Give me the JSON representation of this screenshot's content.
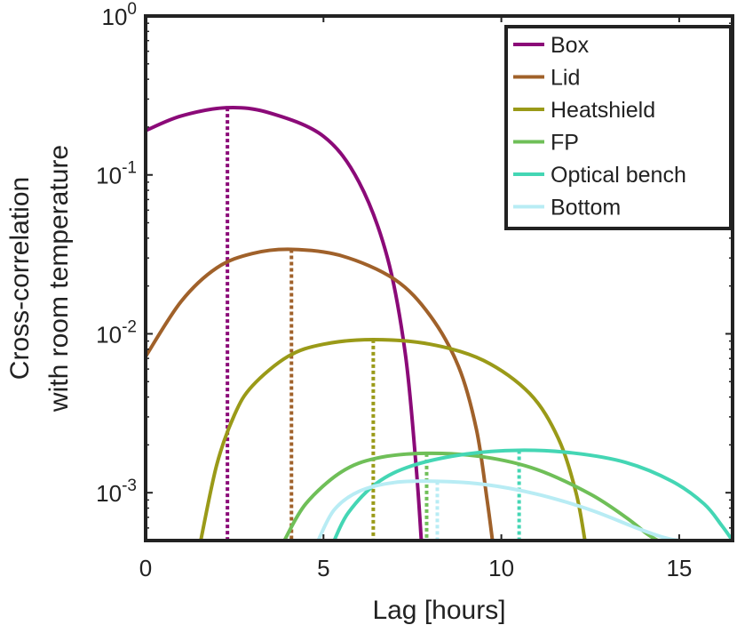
{
  "chart_data": {
    "type": "line",
    "title": "",
    "xlabel": "Lag [hours]",
    "ylabel": [
      "Cross-correlation",
      "with room temperature"
    ],
    "xlim": [
      0,
      16.5
    ],
    "ylim": [
      0.0005,
      1
    ],
    "yscale": "log",
    "grid": false,
    "legend_position": "top-right",
    "x_ticks": [
      {
        "value": 0,
        "label": "0"
      },
      {
        "value": 5,
        "label": "5"
      },
      {
        "value": 10,
        "label": "10"
      },
      {
        "value": 15,
        "label": "15"
      }
    ],
    "y_ticks": [
      {
        "value": 0.001,
        "base": "10",
        "exp": "-3"
      },
      {
        "value": 0.01,
        "base": "10",
        "exp": "-2"
      },
      {
        "value": 0.1,
        "base": "10",
        "exp": "-1"
      },
      {
        "value": 1,
        "base": "10",
        "exp": "0"
      }
    ],
    "series": [
      {
        "name": "Box",
        "color": "#8b0a78",
        "x": [
          0,
          1,
          2.3,
          3.5,
          5,
          6,
          6.8,
          7.3,
          7.6,
          7.75
        ],
        "y": [
          0.19,
          0.235,
          0.265,
          0.245,
          0.175,
          0.09,
          0.03,
          0.0075,
          0.0015,
          0.0005
        ],
        "peak": {
          "x": 2.3,
          "y": 0.265
        }
      },
      {
        "name": "Lid",
        "color": "#a0612a",
        "x": [
          0,
          1,
          2,
          3,
          4.1,
          5.5,
          7,
          8,
          8.8,
          9.3,
          9.6,
          9.75
        ],
        "y": [
          0.0072,
          0.016,
          0.026,
          0.032,
          0.034,
          0.031,
          0.022,
          0.013,
          0.0062,
          0.0025,
          0.0009,
          0.0005
        ],
        "peak": {
          "x": 4.1,
          "y": 0.034
        }
      },
      {
        "name": "Heatshield",
        "color": "#9a9a18",
        "x": [
          1.55,
          2,
          2.5,
          3,
          4,
          5,
          6.4,
          8,
          9.5,
          10.8,
          11.6,
          12.1,
          12.35
        ],
        "y": [
          0.0005,
          0.0015,
          0.0031,
          0.0047,
          0.0072,
          0.0086,
          0.0092,
          0.0086,
          0.0068,
          0.0042,
          0.0022,
          0.001,
          0.0005
        ],
        "peak": {
          "x": 6.4,
          "y": 0.0092
        }
      },
      {
        "name": "FP",
        "color": "#6fbf58",
        "x": [
          3.9,
          4.5,
          5.5,
          6.5,
          7.9,
          9.5,
          11,
          12.5,
          13.5,
          14.1,
          14.4
        ],
        "y": [
          0.0005,
          0.00085,
          0.00135,
          0.00165,
          0.00177,
          0.00168,
          0.0014,
          0.00098,
          0.0007,
          0.00055,
          0.0005
        ],
        "peak": {
          "x": 7.9,
          "y": 0.00177
        }
      },
      {
        "name": "Optical bench",
        "color": "#44d6b4",
        "x": [
          5.3,
          5.7,
          6.5,
          7.5,
          9,
          10.5,
          12,
          13.5,
          14.8,
          15.7,
          16.2,
          16.5
        ],
        "y": [
          0.0005,
          0.00075,
          0.00115,
          0.00148,
          0.00175,
          0.00185,
          0.00178,
          0.00155,
          0.00118,
          0.00085,
          0.00062,
          0.0005
        ],
        "peak": {
          "x": 10.5,
          "y": 0.00185
        }
      },
      {
        "name": "Bottom",
        "color": "#b8ecf4",
        "x": [
          4.85,
          5.3,
          6,
          7,
          8.2,
          9.5,
          11,
          12.5,
          13.8,
          14.6,
          15
        ],
        "y": [
          0.0005,
          0.00078,
          0.00102,
          0.00116,
          0.00118,
          0.00113,
          0.00098,
          0.00078,
          0.0006,
          0.00052,
          0.0005
        ],
        "peak": {
          "x": 8.2,
          "y": 0.00118
        }
      }
    ]
  }
}
